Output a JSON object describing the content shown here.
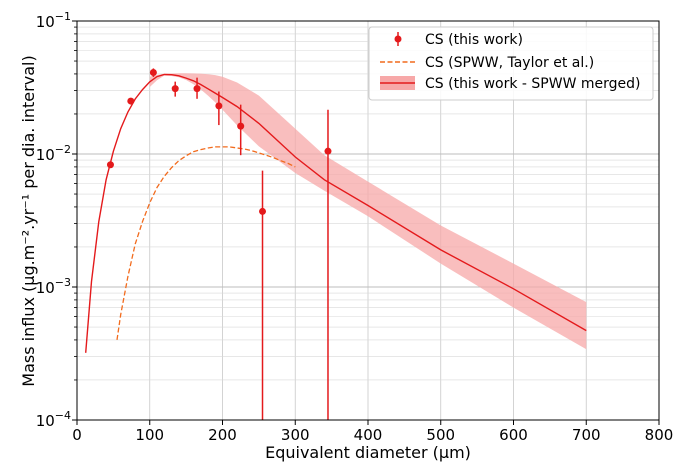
{
  "chart_data": {
    "type": "line",
    "xlabel": "Equivalent diameter (μm)",
    "ylabel": "Mass influx (μg.m⁻².yr⁻¹ per dia. interval)",
    "xlim": [
      0,
      800
    ],
    "ylim": [
      0.0001,
      0.1
    ],
    "yscale": "log",
    "grid": true,
    "legend_position": "top-right",
    "x_ticks": [
      "0",
      "100",
      "200",
      "300",
      "400",
      "500",
      "600",
      "700",
      "800"
    ],
    "y_ticks": [
      {
        "base": "10",
        "exp": "−4"
      },
      {
        "base": "10",
        "exp": "−3"
      },
      {
        "base": "10",
        "exp": "−2"
      },
      {
        "base": "10",
        "exp": "−1"
      }
    ],
    "colors": {
      "red": "#e41a1c",
      "orange": "#f26b1d",
      "band": "#f7a8a8"
    },
    "series": [
      {
        "name": "CS (this work)",
        "kind": "errorbar",
        "x": [
          46,
          74,
          105,
          135,
          165,
          195,
          225,
          255,
          345
        ],
        "y": [
          0.0083,
          0.025,
          0.041,
          0.031,
          0.031,
          0.023,
          0.0162,
          0.0037,
          0.0105
        ],
        "y_low": [
          0.0083,
          0.025,
          0.038,
          0.027,
          0.026,
          0.0165,
          0.0098,
          0.0001,
          0.0001
        ],
        "y_high": [
          0.0083,
          0.025,
          0.044,
          0.035,
          0.0375,
          0.0295,
          0.0235,
          0.0075,
          0.0215
        ]
      },
      {
        "name": "CS (SPWW, Taylor et al.)",
        "kind": "dashed",
        "x": [
          55,
          60,
          70,
          80,
          90,
          100,
          110,
          120,
          130,
          140,
          150,
          160,
          170,
          180,
          190,
          200,
          210,
          220,
          230,
          240,
          250,
          260,
          270,
          280,
          290,
          300
        ],
        "y": [
          0.0004,
          0.00062,
          0.0012,
          0.0021,
          0.0031,
          0.0043,
          0.0056,
          0.0068,
          0.0079,
          0.0089,
          0.0097,
          0.0104,
          0.0108,
          0.0111,
          0.0113,
          0.0113,
          0.0113,
          0.0111,
          0.0109,
          0.0106,
          0.0102,
          0.0098,
          0.0094,
          0.0089,
          0.0085,
          0.008
        ]
      },
      {
        "name": "CS (this work - SPWW merged)",
        "kind": "band",
        "x": [
          12,
          20,
          30,
          40,
          50,
          60,
          70,
          80,
          90,
          100,
          110,
          120,
          130,
          140,
          150,
          160,
          170,
          180,
          190,
          200,
          220,
          250,
          300,
          340,
          400,
          500,
          600,
          700
        ],
        "y": [
          0.00032,
          0.0011,
          0.0031,
          0.0064,
          0.0105,
          0.0155,
          0.0207,
          0.0259,
          0.0305,
          0.0349,
          0.0382,
          0.0396,
          0.0395,
          0.0387,
          0.0372,
          0.0355,
          0.0333,
          0.0309,
          0.0287,
          0.0266,
          0.0227,
          0.017,
          0.0095,
          0.0064,
          0.0041,
          0.0019,
          0.00097,
          0.00047
        ],
        "y_low": [
          null,
          null,
          null,
          null,
          null,
          null,
          null,
          null,
          null,
          0.0319,
          0.0359,
          0.0389,
          0.0386,
          0.0378,
          0.036,
          0.0334,
          0.0306,
          0.0275,
          0.0245,
          0.0215,
          0.0164,
          0.0114,
          0.0072,
          0.0053,
          0.0034,
          0.0015,
          0.0007,
          0.00034
        ],
        "y_high": [
          null,
          null,
          null,
          null,
          null,
          null,
          null,
          null,
          null,
          0.0382,
          0.0392,
          0.0401,
          0.0403,
          0.0405,
          0.0405,
          0.0404,
          0.0402,
          0.0398,
          0.0392,
          0.0381,
          0.0345,
          0.0275,
          0.0155,
          0.0098,
          0.0062,
          0.0029,
          0.0015,
          0.00077
        ]
      }
    ]
  }
}
